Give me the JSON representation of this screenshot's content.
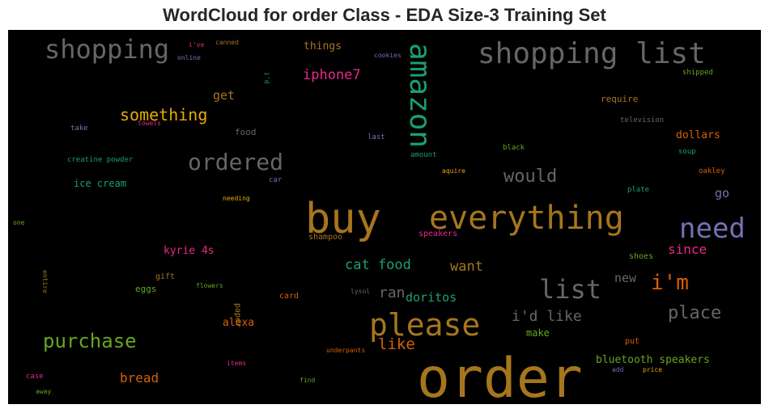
{
  "chart_data": {
    "type": "wordcloud",
    "title": "WordCloud for order Class - EDA Size-3 Training Set",
    "words": [
      {
        "text": "order",
        "color": "#a6761d"
      },
      {
        "text": "buy",
        "color": "#a6761d"
      },
      {
        "text": "everything",
        "color": "#a6761d"
      },
      {
        "text": "shopping list",
        "color": "#666666"
      },
      {
        "text": "please",
        "color": "#a6761d"
      },
      {
        "text": "need",
        "color": "#7570b3"
      },
      {
        "text": "amazon",
        "color": "#1b9e77",
        "vertical": true
      },
      {
        "text": "shopping",
        "color": "#666666"
      },
      {
        "text": "list",
        "color": "#666666"
      },
      {
        "text": "i'm",
        "color": "#d95f02"
      },
      {
        "text": "ordered",
        "color": "#666666"
      },
      {
        "text": "purchase",
        "color": "#66a61e"
      },
      {
        "text": "place",
        "color": "#666666"
      },
      {
        "text": "something",
        "color": "#e6ab02"
      },
      {
        "text": "would",
        "color": "#666666"
      },
      {
        "text": "i'd like",
        "color": "#666666"
      },
      {
        "text": "like",
        "color": "#d95f02"
      },
      {
        "text": "iphone7",
        "color": "#e7298a"
      },
      {
        "text": "cat food",
        "color": "#1b9e77"
      },
      {
        "text": "ran",
        "color": "#666666"
      },
      {
        "text": "want",
        "color": "#a6761d"
      },
      {
        "text": "since",
        "color": "#e7298a"
      },
      {
        "text": "doritos",
        "color": "#1b9e77"
      },
      {
        "text": "bread",
        "color": "#d95f02"
      },
      {
        "text": "bluetooth speakers",
        "color": "#66a61e"
      },
      {
        "text": "new",
        "color": "#666666"
      },
      {
        "text": "go",
        "color": "#7570b3"
      },
      {
        "text": "dollars",
        "color": "#d95f02"
      },
      {
        "text": "get",
        "color": "#a6761d"
      },
      {
        "text": "kyrie 4s",
        "color": "#e7298a"
      },
      {
        "text": "alexa",
        "color": "#d95f02"
      },
      {
        "text": "things",
        "color": "#a6761d"
      },
      {
        "text": "make",
        "color": "#66a61e"
      },
      {
        "text": "ice cream",
        "color": "#1b9e77"
      },
      {
        "text": "require",
        "color": "#a6761d"
      },
      {
        "text": "food",
        "color": "#666666"
      },
      {
        "text": "shoes",
        "color": "#66a61e"
      },
      {
        "text": "put",
        "color": "#d95f02"
      },
      {
        "text": "shampoo",
        "color": "#a6761d"
      },
      {
        "text": "speakers",
        "color": "#e7298a"
      },
      {
        "text": "eggs",
        "color": "#66a61e"
      },
      {
        "text": "gift",
        "color": "#a6761d"
      },
      {
        "text": "card",
        "color": "#d95f02"
      },
      {
        "text": "paper",
        "color": "#a6761d",
        "vertical": true
      },
      {
        "text": "creatine powder",
        "color": "#1b9e77"
      },
      {
        "text": "amount",
        "color": "#1b9e77"
      },
      {
        "text": "last",
        "color": "#7570b3"
      },
      {
        "text": "black",
        "color": "#66a61e"
      },
      {
        "text": "television",
        "color": "#666666"
      },
      {
        "text": "soup",
        "color": "#1b9e77"
      },
      {
        "text": "oakley",
        "color": "#d95f02"
      },
      {
        "text": "shipped",
        "color": "#66a61e"
      },
      {
        "text": "plate",
        "color": "#1b9e77"
      },
      {
        "text": "car",
        "color": "#7570b3"
      },
      {
        "text": "needing",
        "color": "#e6ab02"
      },
      {
        "text": "aquire",
        "color": "#e6ab02"
      },
      {
        "text": "take",
        "color": "#7570b3"
      },
      {
        "text": "towels",
        "color": "#e7298a"
      },
      {
        "text": "cookies",
        "color": "#7570b3"
      },
      {
        "text": "canned",
        "color": "#a6761d"
      },
      {
        "text": "i've",
        "color": "#e7298a"
      },
      {
        "text": "online",
        "color": "#7570b3"
      },
      {
        "text": "i'd",
        "color": "#1b9e77",
        "vertical": true
      },
      {
        "text": "one",
        "color": "#66a61e"
      },
      {
        "text": "entire",
        "color": "#a6761d",
        "vertical": true
      },
      {
        "text": "flowers",
        "color": "#66a61e"
      },
      {
        "text": "lysol",
        "color": "#666666"
      },
      {
        "text": "underpants",
        "color": "#d95f02"
      },
      {
        "text": "items",
        "color": "#e7298a"
      },
      {
        "text": "find",
        "color": "#66a61e"
      },
      {
        "text": "add",
        "color": "#7570b3"
      },
      {
        "text": "price",
        "color": "#e6ab02"
      },
      {
        "text": "case",
        "color": "#e7298a"
      },
      {
        "text": "away",
        "color": "#66a61e"
      }
    ]
  }
}
